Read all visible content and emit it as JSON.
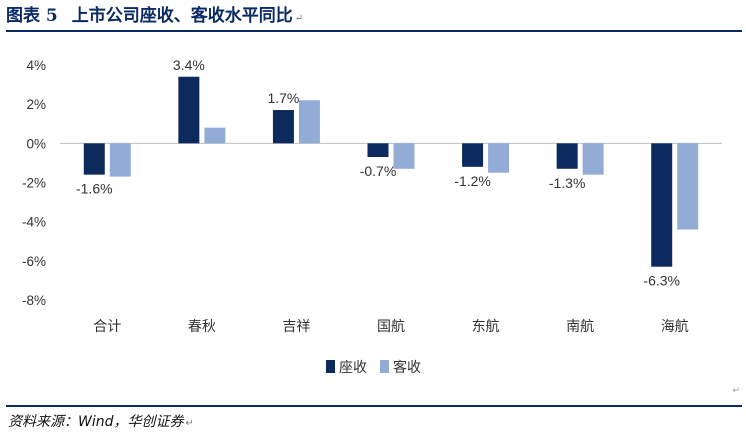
{
  "title": {
    "figure_no": "图表 5",
    "text": "上市公司座收、客收水平同比"
  },
  "source": "资料来源：Wind，华创证券",
  "colors": {
    "title": "#0a2a63",
    "rule": "#0a2a63",
    "series_1": "#0d2a5e",
    "series_2": "#93acd6"
  },
  "chart_data": {
    "type": "bar",
    "categories": [
      "合计",
      "春秋",
      "吉祥",
      "国航",
      "东航",
      "南航",
      "海航"
    ],
    "series": [
      {
        "name": "座收",
        "values": [
          -1.6,
          3.4,
          1.7,
          -0.7,
          -1.2,
          -1.3,
          -6.3
        ]
      },
      {
        "name": "客收",
        "values": [
          -1.7,
          0.8,
          2.2,
          -1.3,
          -1.5,
          -1.6,
          -4.4
        ]
      }
    ],
    "data_labels": [
      "-1.6%",
      "3.4%",
      "1.7%",
      "-0.7%",
      "-1.2%",
      "-1.3%",
      "-6.3%"
    ],
    "y_ticks": [
      "4%",
      "2%",
      "0%",
      "-2%",
      "-4%",
      "-6%",
      "-8%"
    ],
    "ylim": [
      -8,
      4
    ],
    "y_unit": "%",
    "legend_position": "bottom",
    "grid": false
  }
}
